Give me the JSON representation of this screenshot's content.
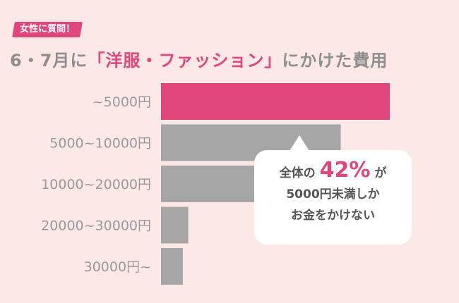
{
  "tag": "女性に質問！",
  "title": {
    "pre": "6・7月に",
    "highlight": "「洋服・ファッション」",
    "post": "にかけた費用"
  },
  "chart_data": {
    "type": "bar",
    "orientation": "horizontal",
    "categories": [
      "~5000円",
      "5000~10000円",
      "10000~20000円",
      "20000~30000円",
      "30000円~"
    ],
    "values": [
      42,
      33,
      20,
      5,
      4
    ],
    "xlim": [
      0,
      42
    ],
    "colors": [
      "#e0457b",
      "#a6a6a6",
      "#a6a6a6",
      "#a6a6a6",
      "#a6a6a6"
    ],
    "label_color": "#9a9a9a"
  },
  "callout": {
    "line1_pre": "全体の",
    "percent": "42%",
    "line1_post": "が",
    "line2": "5000円未満しか",
    "line3": "お金をかけない"
  }
}
